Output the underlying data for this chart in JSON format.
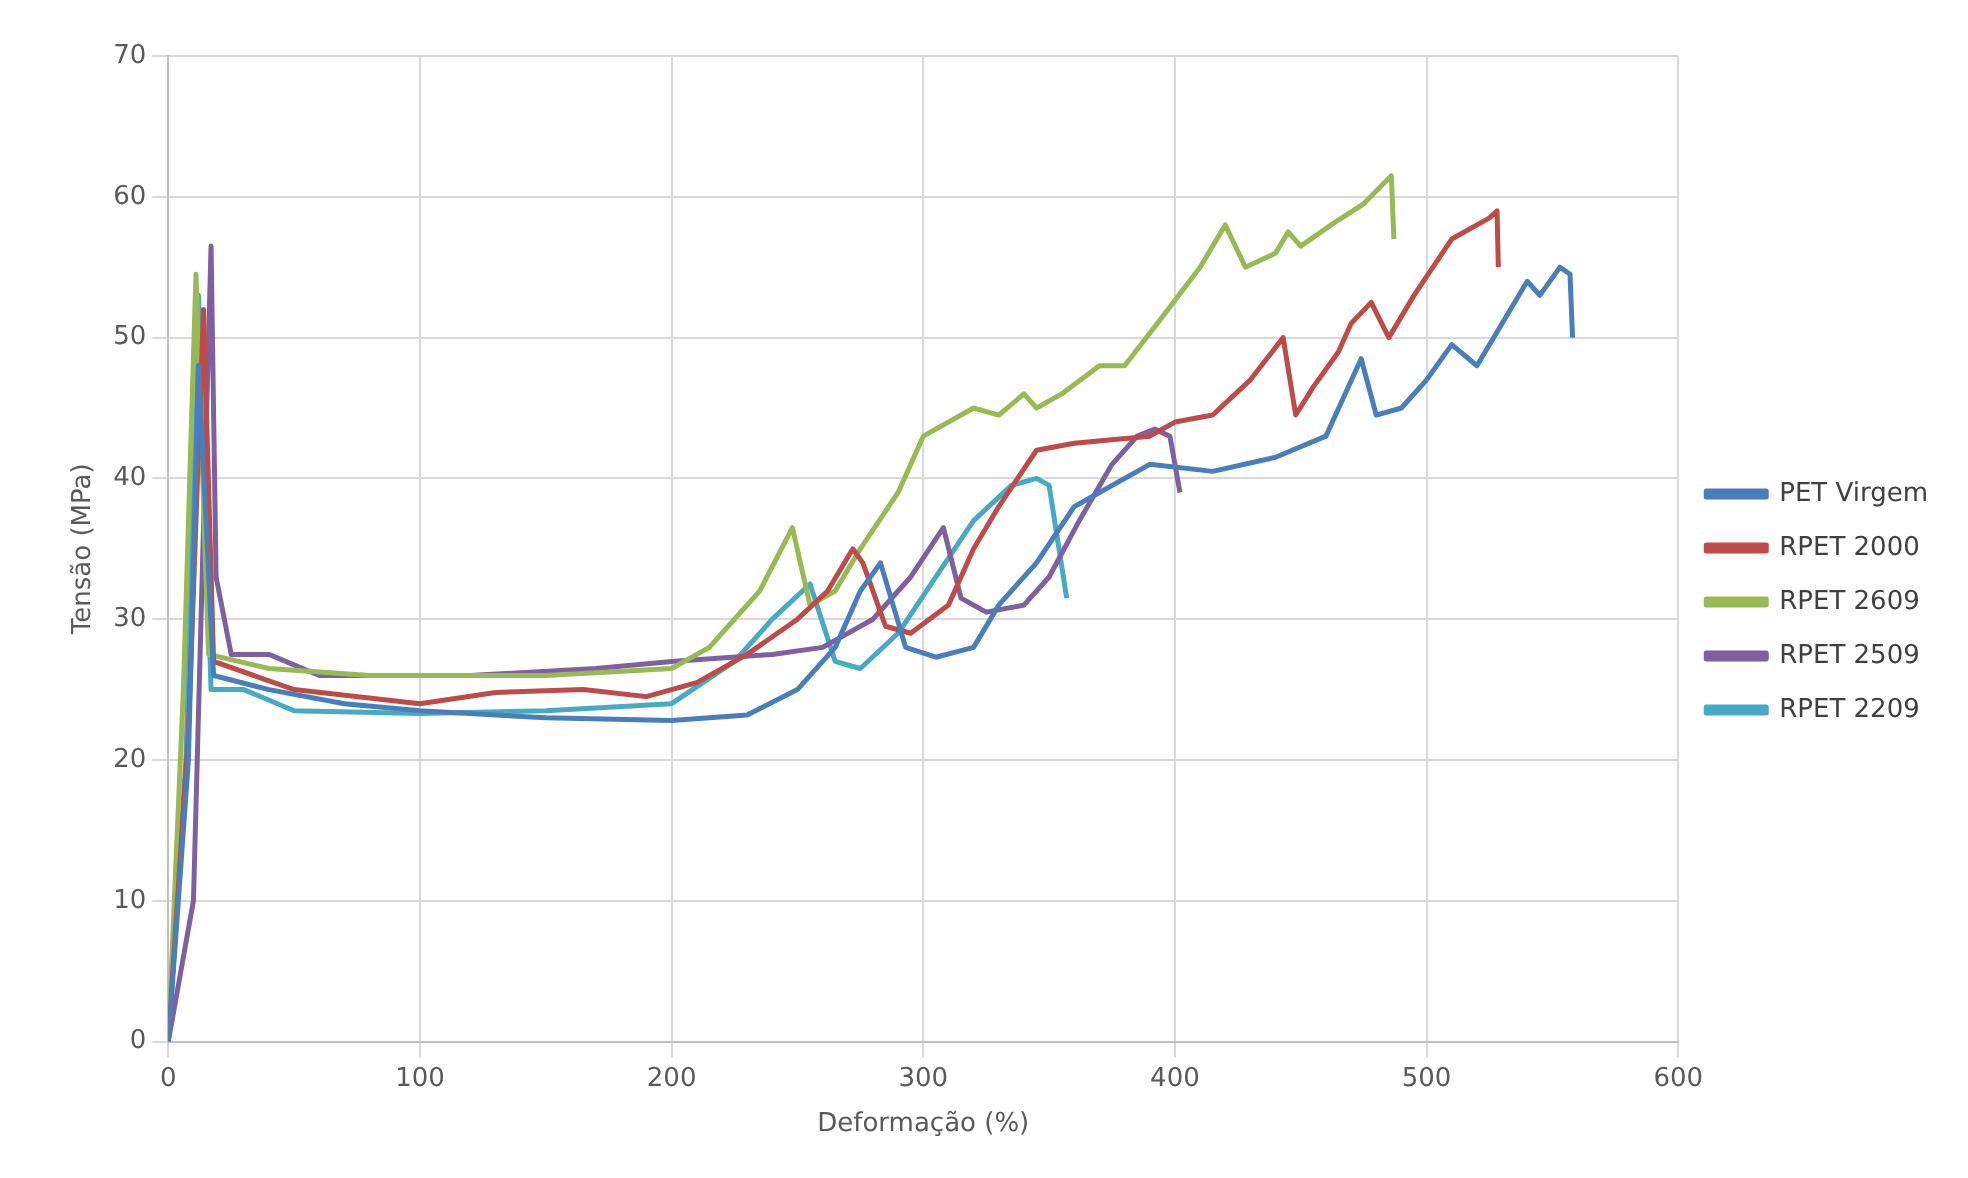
{
  "chart_data": {
    "type": "line",
    "xlabel": "Deformação (%)",
    "ylabel": "Tensão (MPa)",
    "xlim": [
      0,
      600
    ],
    "xticks": [
      0,
      100,
      200,
      300,
      400,
      500,
      600
    ],
    "ylim": [
      0,
      70
    ],
    "yticks": [
      0,
      10,
      20,
      30,
      40,
      50,
      60,
      70
    ],
    "grid": true,
    "legend": "right",
    "marker": "none",
    "line_style": "solid",
    "series": [
      {
        "name": "PET Virgem",
        "color": "#4a7ebb",
        "x": [
          0,
          8,
          12,
          18,
          40,
          70,
          100,
          150,
          200,
          230,
          250,
          265,
          275,
          283,
          293,
          305,
          320,
          330,
          345,
          360,
          370,
          390,
          415,
          440,
          460,
          474,
          480,
          490,
          500,
          510,
          520,
          530,
          540,
          545,
          553,
          557,
          558
        ],
        "values": [
          0,
          20,
          48,
          26,
          25,
          24,
          23.5,
          23,
          22.8,
          23.2,
          25,
          28,
          32,
          34,
          28,
          27.3,
          28,
          31,
          34,
          38,
          39,
          41,
          40.5,
          41.5,
          43,
          48.5,
          44.5,
          45,
          47,
          49.5,
          48,
          51,
          54,
          53,
          55,
          54.5,
          50
        ]
      },
      {
        "name": "RPET 2000",
        "color": "#be4b48",
        "x": [
          0,
          8,
          14,
          18,
          50,
          100,
          130,
          165,
          190,
          210,
          230,
          250,
          262,
          272,
          276,
          285,
          295,
          310,
          320,
          330,
          345,
          360,
          390,
          400,
          415,
          430,
          443,
          448,
          455,
          465,
          470,
          478,
          485,
          495,
          510,
          525,
          528,
          528.5
        ],
        "values": [
          0,
          22,
          52,
          27,
          25,
          24,
          24.8,
          25,
          24.5,
          25.5,
          27.5,
          30,
          32,
          35,
          34,
          29.5,
          29,
          31,
          35,
          38,
          42,
          42.5,
          43,
          44,
          44.5,
          47,
          50,
          44.5,
          46.5,
          49,
          51,
          52.5,
          50,
          53,
          57,
          58.5,
          59,
          55
        ]
      },
      {
        "name": "RPET 2609",
        "color": "#98b954",
        "x": [
          0,
          6,
          11,
          16,
          40,
          80,
          150,
          200,
          215,
          235,
          248,
          255,
          265,
          275,
          290,
          300,
          320,
          330,
          340,
          345,
          355,
          370,
          380,
          393,
          410,
          420,
          428,
          440,
          445,
          450,
          462,
          475,
          486,
          487
        ],
        "values": [
          0,
          25,
          54.5,
          27.5,
          26.5,
          26,
          26,
          26.5,
          28,
          32,
          36.5,
          31,
          32,
          35,
          39,
          43,
          45,
          44.5,
          46,
          45,
          46,
          48,
          48,
          51,
          55,
          58,
          55,
          56,
          57.5,
          56.5,
          58,
          59.5,
          61.5,
          57
        ]
      },
      {
        "name": "RPET 2509",
        "color": "#7d60a0",
        "x": [
          0,
          10,
          17,
          19,
          25,
          40,
          60,
          120,
          170,
          200,
          240,
          260,
          280,
          295,
          308,
          315,
          325,
          340,
          350,
          362,
          375,
          385,
          392,
          398,
          402
        ],
        "values": [
          0,
          10,
          56.5,
          33,
          27.5,
          27.5,
          26,
          26,
          26.5,
          27,
          27.5,
          28,
          30,
          33,
          36.5,
          31.5,
          30.5,
          31,
          33,
          37,
          41,
          43,
          43.5,
          43,
          39
        ]
      },
      {
        "name": "RPET 2209",
        "color": "#46aac5",
        "x": [
          0,
          7,
          12,
          17,
          30,
          50,
          100,
          150,
          200,
          225,
          240,
          255,
          265,
          275,
          290,
          305,
          320,
          335,
          345,
          350,
          357
        ],
        "values": [
          0,
          20,
          53,
          25,
          25,
          23.5,
          23.3,
          23.5,
          24,
          27,
          30,
          32.5,
          27,
          26.5,
          29,
          33,
          37,
          39.5,
          40,
          39.5,
          31.5
        ]
      }
    ]
  }
}
